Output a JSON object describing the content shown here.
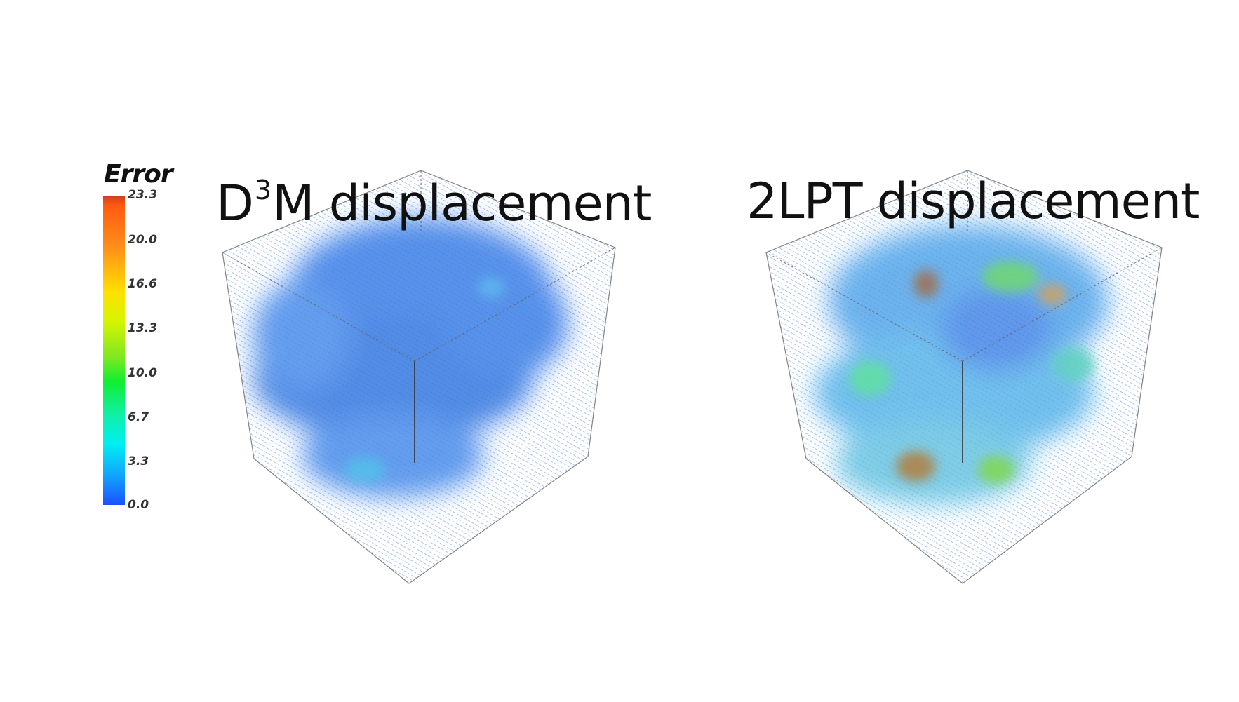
{
  "colorbar": {
    "title": "Error",
    "ticks": [
      "23.3",
      "20.0",
      "16.6",
      "13.3",
      "10.0",
      "6.7",
      "3.3",
      "0.0"
    ],
    "range": [
      0.0,
      23.3
    ]
  },
  "panels": [
    {
      "title_prefix": "D",
      "title_sup": "3",
      "title_suffix": "M displacement"
    },
    {
      "title_prefix": "2LPT displacement",
      "title_sup": "",
      "title_suffix": ""
    }
  ],
  "colors": {
    "low": "#1a50ff",
    "mid": "#10ee30",
    "high": "#ff5a10",
    "cube_edge": "#555555"
  }
}
